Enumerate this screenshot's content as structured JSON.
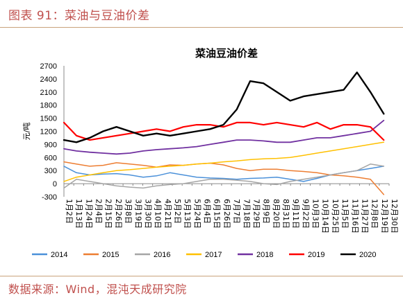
{
  "header": {
    "figure_caption": "图表 91：菜油与豆油价差"
  },
  "footer": {
    "source": "数据来源：Wind，混沌天成研究院"
  },
  "colors": {
    "caption": "#c0504d",
    "2014": "#4a90d9",
    "2015": "#ed7d31",
    "2016": "#a5a5a5",
    "2017": "#ffc000",
    "2018": "#7030a0",
    "2019": "#ff0000",
    "2020": "#000000"
  },
  "chart_data": {
    "type": "line",
    "title": "菜油豆油价差",
    "ylabel": "元/吨",
    "ylim": [
      -300,
      2700
    ],
    "yticks": [
      -300,
      0,
      300,
      600,
      900,
      1200,
      1500,
      1800,
      2100,
      2400,
      2700
    ],
    "x_tick_labels": [
      "1月2日",
      "1月13日",
      "1月24日",
      "2月4日",
      "2月15日",
      "2月26日",
      "3月8日",
      "3月19日",
      "3月30日",
      "4月10日",
      "4月21日",
      "5月2日",
      "5月13日",
      "5月24日",
      "6月4日",
      "6月15日",
      "6月26日",
      "7月7日",
      "7月18日",
      "7月29日",
      "8月9日",
      "8月20日",
      "8月31日",
      "9月11日",
      "9月22日",
      "10月3日",
      "10月14日",
      "10月25日",
      "11月5日",
      "11月16日",
      "11月27日",
      "12月8日",
      "12月19日",
      "12月30日"
    ],
    "x_tick_labels_rendered": [
      "1月2日",
      "1月13日",
      "1月24日",
      "2月4日",
      "2月15日",
      "2月26日",
      "3月8日",
      "3月19日",
      "3月30日",
      "4月10日",
      "4月21日",
      "5月2日",
      "5月13日",
      "5月24日",
      "6月4日",
      "6月15日",
      "6月26日",
      "7月7日",
      "7月18日",
      "7月29日",
      "8月9日",
      "8月20日",
      "8月31日",
      "9月11日",
      "9月22日",
      "10月3日",
      "10月14日",
      "10月25日",
      "11月5日",
      "11月16日",
      "11月27日",
      "12月8日",
      "12月19日",
      "12月30日"
    ],
    "legend_position": "bottom",
    "x_day_of_year": [
      1,
      15,
      30,
      45,
      60,
      75,
      90,
      105,
      120,
      135,
      150,
      165,
      180,
      195,
      210,
      225,
      240,
      255,
      270,
      285,
      300,
      315,
      330,
      345,
      360
    ],
    "series": [
      {
        "name": "2014",
        "values": [
          400,
          250,
          200,
          220,
          230,
          200,
          150,
          180,
          250,
          200,
          150,
          130,
          120,
          100,
          120,
          130,
          150,
          100,
          50,
          120,
          200,
          250,
          300,
          350,
          400
        ]
      },
      {
        "name": "2015",
        "values": [
          500,
          450,
          400,
          420,
          480,
          450,
          420,
          380,
          430,
          420,
          450,
          470,
          430,
          350,
          300,
          330,
          330,
          300,
          280,
          250,
          200,
          180,
          150,
          100,
          -250
        ]
      },
      {
        "name": "2016",
        "values": [
          -100,
          100,
          50,
          0,
          -50,
          -80,
          -100,
          -50,
          -20,
          0,
          50,
          100,
          100,
          80,
          50,
          0,
          -20,
          50,
          100,
          150,
          200,
          250,
          300,
          450,
          400
        ]
      },
      {
        "name": "2017",
        "values": [
          50,
          150,
          200,
          250,
          300,
          320,
          350,
          380,
          400,
          420,
          450,
          470,
          500,
          520,
          550,
          570,
          580,
          600,
          650,
          700,
          750,
          800,
          850,
          900,
          950
        ]
      },
      {
        "name": "2018",
        "values": [
          800,
          750,
          720,
          700,
          680,
          700,
          750,
          780,
          800,
          820,
          850,
          900,
          950,
          1000,
          1000,
          980,
          950,
          950,
          1000,
          1050,
          1050,
          1100,
          1150,
          1200,
          1450
        ]
      },
      {
        "name": "2019",
        "values": [
          1400,
          1100,
          1000,
          1050,
          1100,
          1150,
          1200,
          1250,
          1200,
          1300,
          1350,
          1350,
          1300,
          1400,
          1400,
          1350,
          1400,
          1350,
          1300,
          1400,
          1250,
          1350,
          1350,
          1300,
          1000
        ]
      },
      {
        "name": "2020",
        "values": [
          1000,
          950,
          1050,
          1200,
          1300,
          1200,
          1100,
          1150,
          1100,
          1150,
          1200,
          1250,
          1350,
          1700,
          2350,
          2300,
          2100,
          1900,
          2000,
          2050,
          2100,
          2150,
          2550,
          2100,
          1600
        ]
      }
    ]
  }
}
